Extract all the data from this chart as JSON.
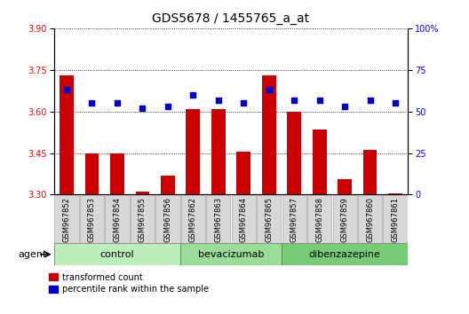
{
  "title": "GDS5678 / 1455765_a_at",
  "samples": [
    "GSM967852",
    "GSM967853",
    "GSM967854",
    "GSM967855",
    "GSM967856",
    "GSM967862",
    "GSM967863",
    "GSM967864",
    "GSM967865",
    "GSM967857",
    "GSM967858",
    "GSM967859",
    "GSM967860",
    "GSM967861"
  ],
  "transformed_counts": [
    3.73,
    3.45,
    3.45,
    3.31,
    3.37,
    3.61,
    3.61,
    3.455,
    3.73,
    3.6,
    3.535,
    3.355,
    3.46,
    3.305
  ],
  "percentile_ranks": [
    63,
    55,
    55,
    52,
    53,
    60,
    57,
    55,
    63,
    57,
    57,
    53,
    57,
    55
  ],
  "groups": [
    {
      "label": "control",
      "start": 0,
      "end": 5,
      "color": "#bbeebb"
    },
    {
      "label": "bevacizumab",
      "start": 5,
      "end": 9,
      "color": "#99dd99"
    },
    {
      "label": "dibenzazepine",
      "start": 9,
      "end": 14,
      "color": "#77cc77"
    }
  ],
  "bar_color": "#cc0000",
  "dot_color": "#0000cc",
  "ylim_left": [
    3.3,
    3.9
  ],
  "ylim_right": [
    0,
    100
  ],
  "yticks_left": [
    3.3,
    3.45,
    3.6,
    3.75,
    3.9
  ],
  "yticks_right": [
    0,
    25,
    50,
    75,
    100
  ],
  "grid_style": "dotted",
  "legend_red_label": "transformed count",
  "legend_blue_label": "percentile rank within the sample",
  "agent_label": "agent",
  "sample_box_color": "#d8d8d8",
  "title_fontsize": 10,
  "tick_fontsize": 7,
  "sample_fontsize": 6,
  "group_fontsize": 8,
  "legend_fontsize": 7
}
